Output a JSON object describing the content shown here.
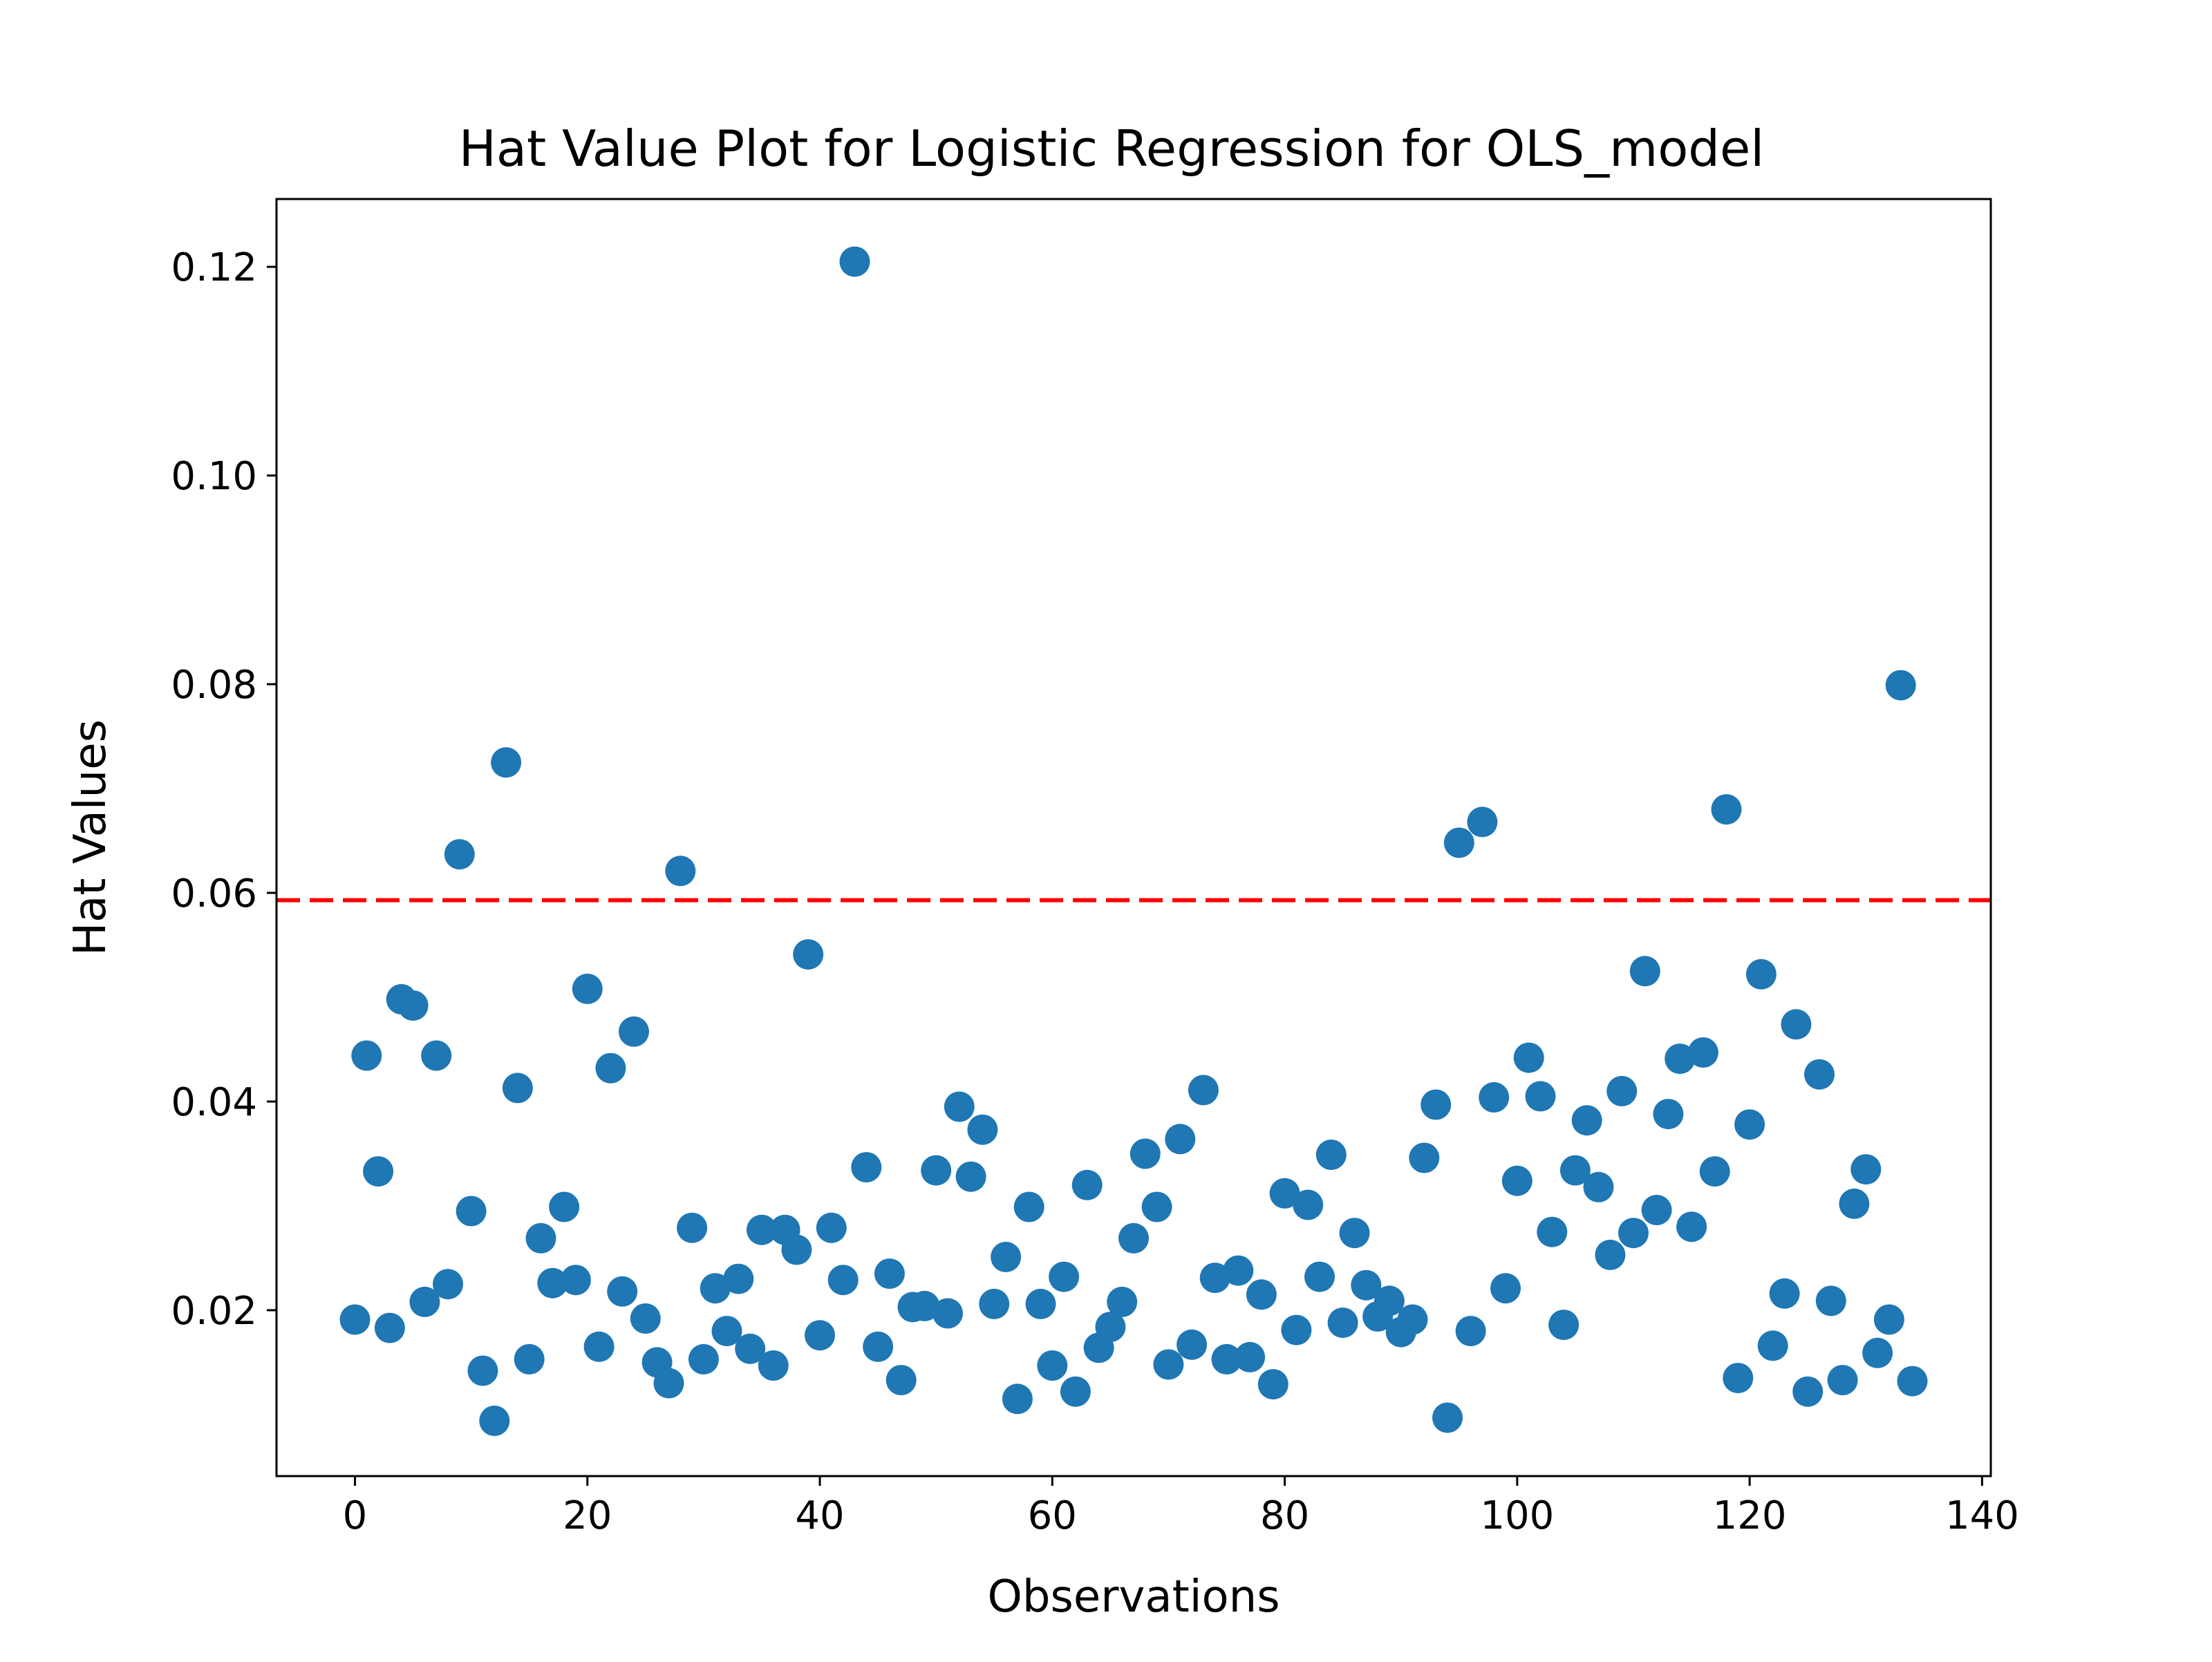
{
  "chart_data": {
    "type": "scatter",
    "title": "Hat Value Plot for Logistic Regression for OLS_model",
    "xlabel": "Observations",
    "ylabel": "Hat Values",
    "xlim": [
      -6.75,
      140.75
    ],
    "ylim": [
      0.0041,
      0.1265
    ],
    "xticks": [
      0,
      20,
      40,
      60,
      80,
      100,
      120,
      140
    ],
    "yticks": [
      0.02,
      0.04,
      0.06,
      0.08,
      0.1,
      0.12
    ],
    "xtick_labels": [
      "0",
      "20",
      "40",
      "60",
      "80",
      "100",
      "120",
      "140"
    ],
    "ytick_labels": [
      "0.02",
      "0.04",
      "0.06",
      "0.08",
      "0.10",
      "0.12"
    ],
    "grid": false,
    "point_color": "#1f77b4",
    "threshold": {
      "y": 0.0593,
      "color": "#ff0000",
      "style": "dashed"
    },
    "series": [
      {
        "x": [
          0,
          1,
          2,
          3,
          4,
          5,
          6,
          7,
          8,
          9,
          10,
          11,
          12,
          13,
          14,
          15,
          16,
          17,
          18,
          19,
          20,
          21,
          22,
          23,
          24,
          25,
          26,
          27,
          28,
          29,
          30,
          31,
          32,
          33,
          34,
          35,
          36,
          37,
          38,
          39,
          40,
          41,
          42,
          43,
          44,
          45,
          46,
          47,
          48,
          49,
          50,
          51,
          52,
          53,
          54,
          55,
          56,
          57,
          58,
          59,
          60,
          61,
          62,
          63,
          64,
          65,
          66,
          67,
          68,
          69,
          70,
          71,
          72,
          73,
          74,
          75,
          76,
          77,
          78,
          79,
          80,
          81,
          82,
          83,
          84,
          85,
          86,
          87,
          88,
          89,
          90,
          91,
          92,
          93,
          94,
          95,
          96,
          97,
          98,
          99,
          100,
          101,
          102,
          103,
          104,
          105,
          106,
          107,
          108,
          109,
          110,
          111,
          112,
          113,
          114,
          115,
          116,
          117,
          118,
          119,
          120,
          121,
          122,
          123,
          124,
          125,
          126,
          127,
          128,
          129,
          130,
          131,
          132,
          133,
          134
        ],
        "values": [
          0.0191,
          0.0444,
          0.0333,
          0.0183,
          0.0498,
          0.0492,
          0.0208,
          0.0444,
          0.0225,
          0.0637,
          0.0295,
          0.0142,
          0.0094,
          0.0725,
          0.0413,
          0.0153,
          0.0269,
          0.0226,
          0.0299,
          0.0229,
          0.0508,
          0.0165,
          0.0432,
          0.0218,
          0.0467,
          0.0192,
          0.015,
          0.013,
          0.0621,
          0.0279,
          0.0153,
          0.0221,
          0.018,
          0.023,
          0.0163,
          0.0277,
          0.0147,
          0.0277,
          0.0258,
          0.0541,
          0.0176,
          0.0279,
          0.0229,
          0.1205,
          0.0337,
          0.0165,
          0.0235,
          0.0133,
          0.0203,
          0.0204,
          0.0334,
          0.0197,
          0.0395,
          0.0328,
          0.0373,
          0.0206,
          0.0251,
          0.0115,
          0.0299,
          0.0206,
          0.0147,
          0.0232,
          0.0122,
          0.032,
          0.0164,
          0.0184,
          0.0208,
          0.0269,
          0.035,
          0.0299,
          0.0148,
          0.0364,
          0.0167,
          0.0411,
          0.0231,
          0.0153,
          0.0238,
          0.0155,
          0.0215,
          0.0129,
          0.0312,
          0.0181,
          0.0301,
          0.0232,
          0.0349,
          0.0188,
          0.0274,
          0.0224,
          0.0194,
          0.0209,
          0.0179,
          0.0191,
          0.0346,
          0.0397,
          0.0097,
          0.0648,
          0.018,
          0.0668,
          0.0404,
          0.0221,
          0.0324,
          0.0442,
          0.0405,
          0.0275,
          0.0186,
          0.0334,
          0.0382,
          0.0318,
          0.0253,
          0.041,
          0.0274,
          0.0525,
          0.0296,
          0.0388,
          0.0441,
          0.028,
          0.0447,
          0.0333,
          0.068,
          0.0135,
          0.0378,
          0.0522,
          0.0166,
          0.0216,
          0.0474,
          0.0122,
          0.0426,
          0.0209,
          0.0133,
          0.0302,
          0.0335,
          0.0159,
          0.0191,
          0.0799,
          0.0132
        ]
      }
    ]
  }
}
